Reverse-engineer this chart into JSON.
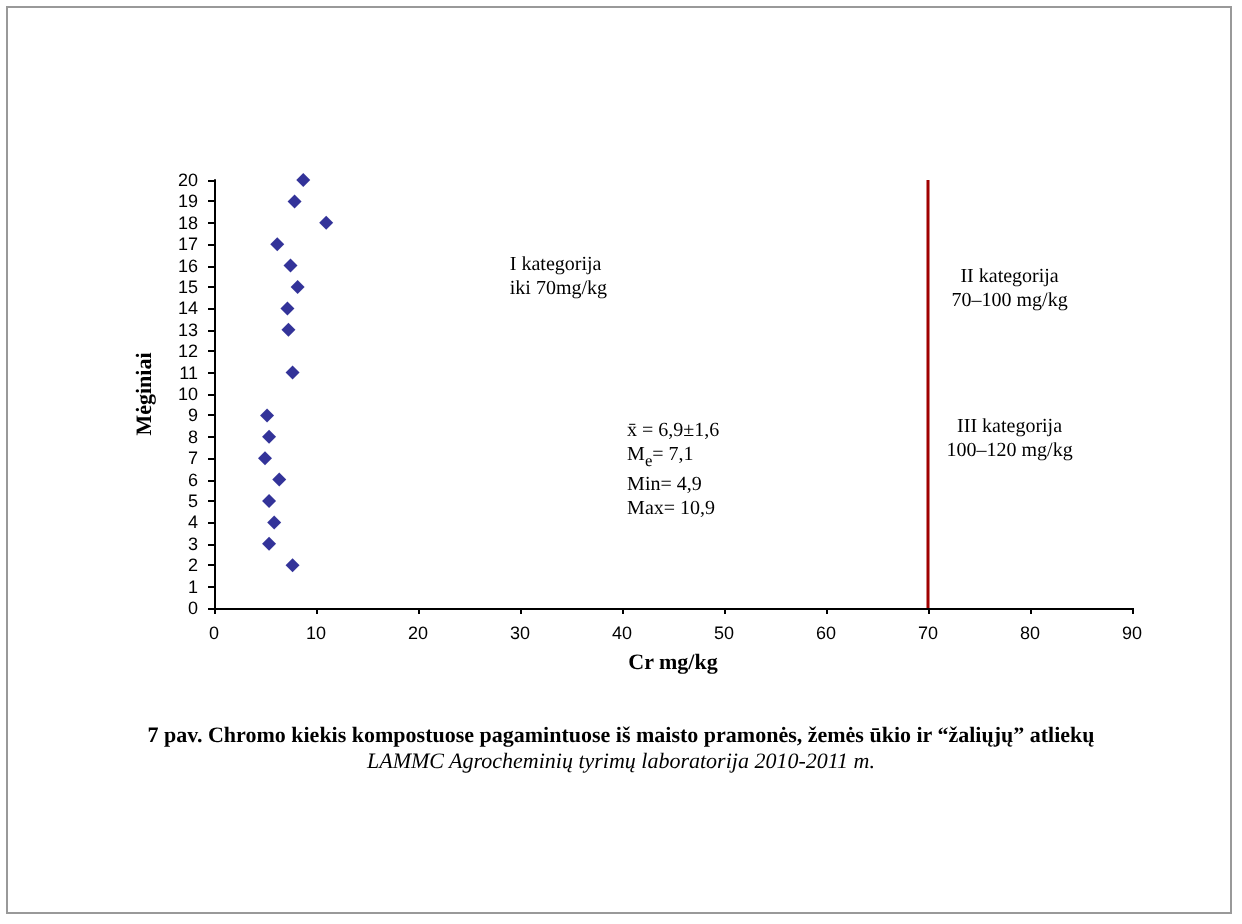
{
  "chart_data": {
    "type": "scatter",
    "title": "7 pav. Chromo kiekis kompostuose pagamintuose iš maisto pramonės, žemės ūkio ir “žaliųjų” atliekų",
    "subtitle": "LAMMC Agrocheminių tyrimų laboratorija 2010-2011 m.",
    "xlabel": "Cr mg/kg",
    "ylabel": "Mėginiai",
    "x": [
      7.7,
      5.4,
      5.9,
      5.4,
      6.4,
      5.0,
      5.4,
      5.2,
      7.7,
      7.3,
      7.2,
      8.2,
      7.5,
      6.2,
      11.0,
      7.9,
      8.75
    ],
    "values": [
      2,
      3,
      4,
      5,
      6,
      7,
      8,
      9,
      11,
      13,
      14,
      15,
      16,
      17,
      18,
      19,
      20
    ],
    "color": "#000080",
    "marker": "diamond",
    "grid": false,
    "xlim": [
      0,
      90
    ],
    "xticks": [
      0,
      10,
      20,
      30,
      40,
      50,
      60,
      70,
      80,
      90
    ],
    "ylim": [
      0,
      20
    ],
    "yticks": [
      0,
      1,
      2,
      3,
      4,
      5,
      6,
      7,
      8,
      9,
      10,
      11,
      12,
      13,
      14,
      15,
      16,
      17,
      18,
      19,
      20
    ],
    "ref_lines": [
      {
        "axis": "x",
        "value": 70,
        "label": null,
        "color": "#a00000"
      }
    ],
    "annotations": [
      "I kategorija\niki 70mg/kg",
      "II kategorija\n70–100 mg/kg",
      "III kategorija\n100–120 mg/kg",
      "x̄ = 6,9±1,6\nM$_{e}$= 7,1\nMin= 4,9\nMax= 10,9"
    ]
  }
}
